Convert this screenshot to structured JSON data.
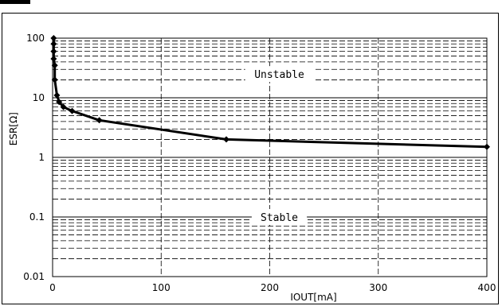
{
  "chart_data": {
    "type": "line",
    "title": "",
    "xlabel": "IOUT[mA]",
    "ylabel": "ESR[Ω]",
    "xlim": [
      0,
      400
    ],
    "ylim": [
      0.01,
      100
    ],
    "yscale": "log",
    "xticks": [
      0,
      100,
      200,
      300,
      400
    ],
    "xtick_labels": [
      "0",
      "100",
      "200",
      "300",
      "400"
    ],
    "yticks": [
      0.01,
      0.1,
      1,
      10,
      100
    ],
    "ytick_labels": [
      "0.01",
      "0.1",
      "1",
      "10",
      "100"
    ],
    "grid": true,
    "grid_style": "dashed",
    "line_color": "#000000",
    "marker": "diamond",
    "regions": [
      {
        "label": "Unstable",
        "x": 200,
        "y": 25
      },
      {
        "label": "Stable",
        "x": 200,
        "y": 0.1
      }
    ],
    "series": [
      {
        "name": "",
        "x": [
          1,
          1,
          1,
          1,
          2,
          2,
          4,
          6,
          10,
          18,
          43,
          160,
          400
        ],
        "y": [
          100,
          80,
          60,
          45,
          35,
          20,
          11,
          8.5,
          7,
          6,
          4.2,
          2,
          1.5
        ]
      }
    ]
  }
}
